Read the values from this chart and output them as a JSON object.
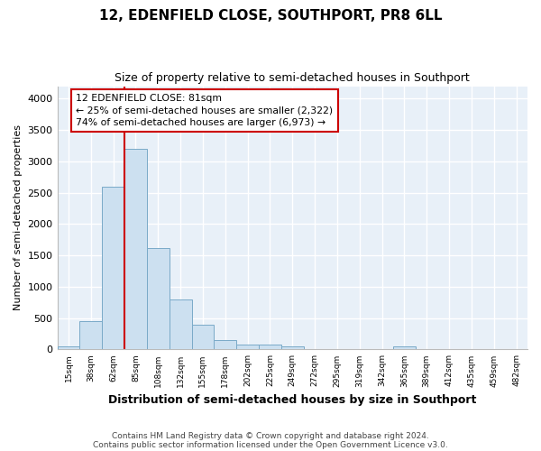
{
  "title": "12, EDENFIELD CLOSE, SOUTHPORT, PR8 6LL",
  "subtitle": "Size of property relative to semi-detached houses in Southport",
  "xlabel": "Distribution of semi-detached houses by size in Southport",
  "ylabel": "Number of semi-detached properties",
  "categories": [
    "15sqm",
    "38sqm",
    "62sqm",
    "85sqm",
    "108sqm",
    "132sqm",
    "155sqm",
    "178sqm",
    "202sqm",
    "225sqm",
    "249sqm",
    "272sqm",
    "295sqm",
    "319sqm",
    "342sqm",
    "365sqm",
    "389sqm",
    "412sqm",
    "435sqm",
    "459sqm",
    "482sqm"
  ],
  "values": [
    50,
    450,
    2600,
    3200,
    1620,
    800,
    390,
    155,
    80,
    80,
    55,
    0,
    0,
    0,
    0,
    55,
    0,
    0,
    0,
    0,
    0
  ],
  "bar_color": "#cce0f0",
  "bar_edge_color": "#7aaac8",
  "property_label": "12 EDENFIELD CLOSE: 81sqm",
  "smaller_pct": "25%",
  "smaller_count": "2,322",
  "larger_pct": "74%",
  "larger_count": "6,973",
  "vline_color": "#cc0000",
  "annotation_box_color": "#cc0000",
  "footer1": "Contains HM Land Registry data © Crown copyright and database right 2024.",
  "footer2": "Contains public sector information licensed under the Open Government Licence v3.0.",
  "ylim": [
    0,
    4200
  ],
  "yticks": [
    0,
    500,
    1000,
    1500,
    2000,
    2500,
    3000,
    3500,
    4000
  ],
  "background_color": "#e8f0f8"
}
